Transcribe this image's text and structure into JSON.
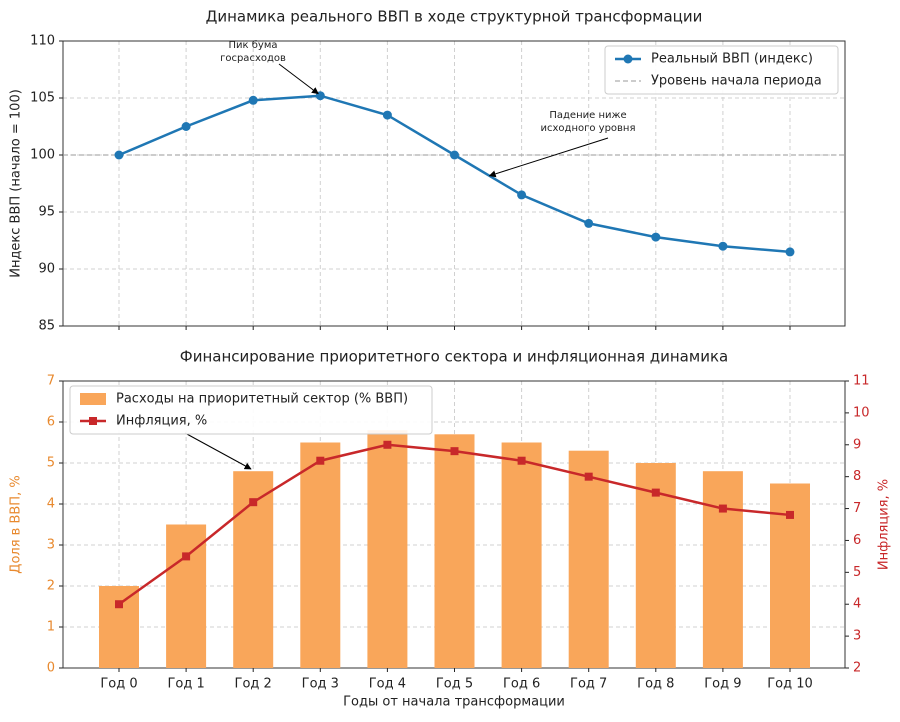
{
  "chart_data": [
    {
      "type": "line",
      "title": "Динамика реального ВВП в ходе структурной трансформации",
      "ylabel": "Индекс ВВП (начало = 100)",
      "categories": [
        "Год 0",
        "Год 1",
        "Год 2",
        "Год 3",
        "Год 4",
        "Год 5",
        "Год 6",
        "Год 7",
        "Год 8",
        "Год 9",
        "Год 10"
      ],
      "series": [
        {
          "name": "Реальный ВВП (индекс)",
          "color": "#1f77b4",
          "values": [
            100,
            102.5,
            104.8,
            105.2,
            103.5,
            100,
            96.5,
            94,
            92.8,
            92,
            91.5
          ]
        }
      ],
      "hline": {
        "name": "Уровень начала периода",
        "value": 100,
        "color": "#999999"
      },
      "annotations": [
        {
          "text": [
            "Пик бума",
            "госрасходов"
          ],
          "x": 3,
          "y": 105.2
        },
        {
          "text": [
            "Падение ниже",
            "исходного уровня"
          ],
          "x": 5.55,
          "y": 98
        }
      ],
      "ylim": [
        85,
        110
      ],
      "yticks": [
        85,
        90,
        95,
        100,
        105,
        110
      ],
      "grid": true,
      "legend": "upper-right"
    },
    {
      "type": "bar-line",
      "title": "Финансирование приоритетного сектора и инфляционная динамика",
      "xlabel": "Годы от начала трансформации",
      "ylabel": "Доля в ВВП, %",
      "y2label": "Инфляция, %",
      "categories": [
        "Год 0",
        "Год 1",
        "Год 2",
        "Год 3",
        "Год 4",
        "Год 5",
        "Год 6",
        "Год 7",
        "Год 8",
        "Год 9",
        "Год 10"
      ],
      "series": [
        {
          "name": "Расходы на приоритетный сектор (% ВВП)",
          "color": "#f9a65a",
          "values": [
            2,
            3.5,
            4.8,
            5.5,
            5.8,
            5.7,
            5.5,
            5.3,
            5.0,
            4.8,
            4.5
          ]
        },
        {
          "name": "Инфляция, %",
          "color": "#c8282a",
          "axis": "y2",
          "values": [
            4,
            5.5,
            7.2,
            8.5,
            9,
            8.8,
            8.5,
            8,
            7.5,
            7,
            6.8
          ]
        }
      ],
      "ylim": [
        0,
        7
      ],
      "yticks": [
        0,
        1,
        2,
        3,
        4,
        5,
        6,
        7
      ],
      "y2lim": [
        2,
        11
      ],
      "y2ticks": [
        2,
        3,
        4,
        5,
        6,
        7,
        8,
        9,
        10,
        11
      ],
      "grid": true,
      "legend": "upper-left"
    }
  ]
}
